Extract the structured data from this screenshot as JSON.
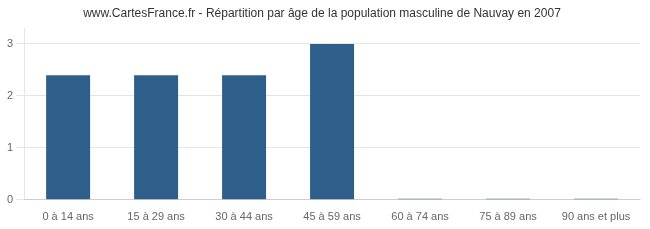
{
  "chart_data": {
    "type": "bar",
    "title": "www.CartesFrance.fr - Répartition par âge de la population masculine de Nauvay en 2007",
    "categories": [
      "0 à 14 ans",
      "15 à 29 ans",
      "30 à 44 ans",
      "45 à 59 ans",
      "60 à 74 ans",
      "75 à 89 ans",
      "90 ans et plus"
    ],
    "values": [
      2.4,
      2.4,
      2.4,
      3.0,
      0.02,
      0.02,
      0.02
    ],
    "color": "#2e5f8a",
    "ylim": [
      0,
      3.3
    ],
    "yticks": [
      0,
      1,
      2,
      3
    ],
    "grid": true
  }
}
